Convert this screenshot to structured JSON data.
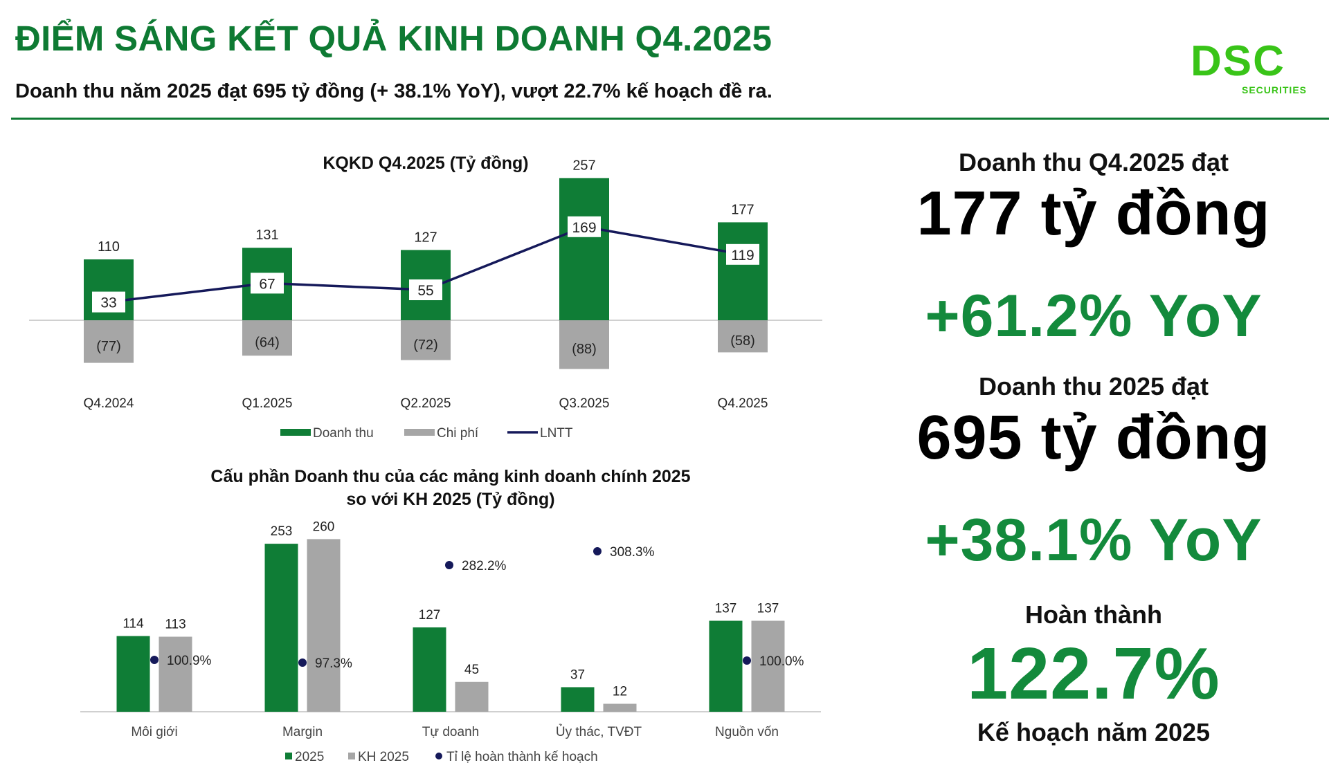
{
  "header": {
    "title": "ĐIỂM SÁNG KẾT QUẢ KINH DOANH Q4.2025",
    "subtitle": "Doanh thu năm 2025 đạt 695 tỷ đồng (+ 38.1% YoY), vượt 22.7% kế hoạch đề ra.",
    "logo_mark": "DSC",
    "logo_sub": "SECURITIES"
  },
  "kpis": {
    "q4_label": "Doanh thu Q4.2025 đạt",
    "q4_value": "177 tỷ đồng",
    "q4_yoy": "+61.2% YoY",
    "year_label": "Doanh thu 2025 đạt",
    "year_value": "695 tỷ đồng",
    "year_yoy": "+38.1% YoY",
    "plan_label": "Hoàn thành",
    "plan_value": "122.7%",
    "plan_foot": "Kế hoạch năm 2025"
  },
  "colors": {
    "green": "#0e7a33",
    "bar_green": "#0f7d36",
    "gray": "#a6a6a6",
    "navy": "#15195a",
    "logo_green": "#39c418"
  },
  "chart_data": [
    {
      "type": "bar",
      "title": "KQKD Q4.2025 (Tỷ đồng)",
      "categories": [
        "Q4.2024",
        "Q1.2025",
        "Q2.2025",
        "Q3.2025",
        "Q4.2025"
      ],
      "series": [
        {
          "name": "Doanh thu",
          "kind": "bar",
          "values": [
            110,
            131,
            127,
            257,
            177
          ],
          "labels": [
            "110",
            "131",
            "127",
            "257",
            "177"
          ]
        },
        {
          "name": "Chi phí",
          "kind": "bar",
          "values": [
            -77,
            -64,
            -72,
            -88,
            -58
          ],
          "labels": [
            "(77)",
            "(64)",
            "(72)",
            "(88)",
            "(58)"
          ]
        },
        {
          "name": "LNTT",
          "kind": "line",
          "values": [
            33,
            67,
            55,
            169,
            119
          ],
          "labels": [
            "33",
            "67",
            "55",
            "169",
            "119"
          ]
        }
      ],
      "legend_position": "bottom",
      "grid": false
    },
    {
      "type": "bar",
      "title": "Cấu phần Doanh thu của các mảng kinh doanh chính 2025",
      "title_line2": "so với KH 2025 (Tỷ đồng)",
      "categories": [
        "Môi giới",
        "Margin",
        "Tự doanh",
        "Ủy thác, TVĐT",
        "Nguồn vốn"
      ],
      "series": [
        {
          "name": "2025",
          "kind": "bar",
          "values": [
            114,
            253,
            127,
            37,
            137
          ],
          "labels": [
            "114",
            "253",
            "127",
            "37",
            "137"
          ]
        },
        {
          "name": "KH 2025",
          "kind": "bar",
          "values": [
            113,
            260,
            45,
            12,
            137
          ],
          "labels": [
            "113",
            "260",
            "45",
            "12",
            "137"
          ]
        },
        {
          "name": "Tỉ lệ hoàn thành kế hoạch",
          "kind": "scatter",
          "values": [
            100.9,
            97.3,
            282.2,
            308.3,
            100.0
          ],
          "labels": [
            "100.9%",
            "97.3%",
            "282.2%",
            "308.3%",
            "100.0%"
          ]
        }
      ],
      "legend_position": "bottom",
      "grid": false
    }
  ]
}
